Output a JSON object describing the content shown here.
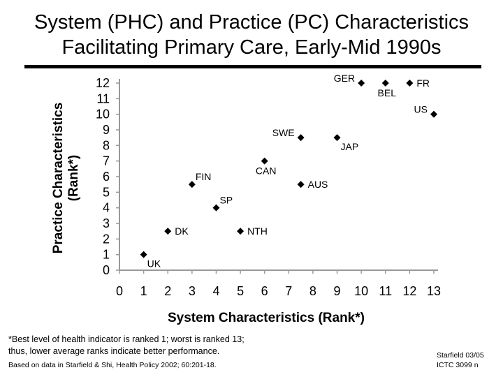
{
  "title": {
    "line1": "System (PHC) and Practice (PC) Characteristics",
    "line2": "Facilitating Primary Care, Early-Mid 1990s"
  },
  "chart_data": {
    "type": "scatter",
    "xlabel": "System Characteristics (Rank*)",
    "ylabel_line1": "Practice Characteristics",
    "ylabel_line2": "(Rank*)",
    "xlim": [
      0,
      13
    ],
    "ylim": [
      0,
      12
    ],
    "x_ticks": [
      0,
      1,
      2,
      3,
      4,
      5,
      6,
      7,
      8,
      9,
      10,
      11,
      12,
      13
    ],
    "y_ticks": [
      0,
      1,
      2,
      3,
      4,
      5,
      6,
      7,
      8,
      9,
      10,
      11,
      12
    ],
    "grid": false,
    "marker": "diamond",
    "marker_color": "#000000",
    "points": [
      {
        "label": "UK",
        "x": 1,
        "y": 1,
        "label_pos": "below-right"
      },
      {
        "label": "DK",
        "x": 2,
        "y": 2.5,
        "label_pos": "right"
      },
      {
        "label": "FIN",
        "x": 3,
        "y": 5.5,
        "label_pos": "above-right"
      },
      {
        "label": "SP",
        "x": 4,
        "y": 4,
        "label_pos": "above-right"
      },
      {
        "label": "NTH",
        "x": 5,
        "y": 2.5,
        "label_pos": "right"
      },
      {
        "label": "CAN",
        "x": 6,
        "y": 7,
        "label_pos": "below"
      },
      {
        "label": "SWE",
        "x": 7.5,
        "y": 8.5,
        "label_pos": "left"
      },
      {
        "label": "AUS",
        "x": 7.5,
        "y": 5.5,
        "label_pos": "right"
      },
      {
        "label": "JAP",
        "x": 9,
        "y": 8.5,
        "label_pos": "below-right"
      },
      {
        "label": "GER",
        "x": 10,
        "y": 12,
        "label_pos": "left"
      },
      {
        "label": "BEL",
        "x": 11,
        "y": 12,
        "label_pos": "below"
      },
      {
        "label": "FR",
        "x": 12,
        "y": 12,
        "label_pos": "right"
      },
      {
        "label": "US",
        "x": 13,
        "y": 10,
        "label_pos": "left"
      }
    ]
  },
  "footnote": {
    "line1": "*Best level of health indicator is ranked 1; worst is ranked 13;",
    "line2": "thus, lower average ranks indicate better performance."
  },
  "source": "Based on data in Starfield & Shi, Health Policy 2002; 60:201-18.",
  "credit": {
    "line1": "Starfield 03/05",
    "line2": "ICTC 3099 n"
  }
}
